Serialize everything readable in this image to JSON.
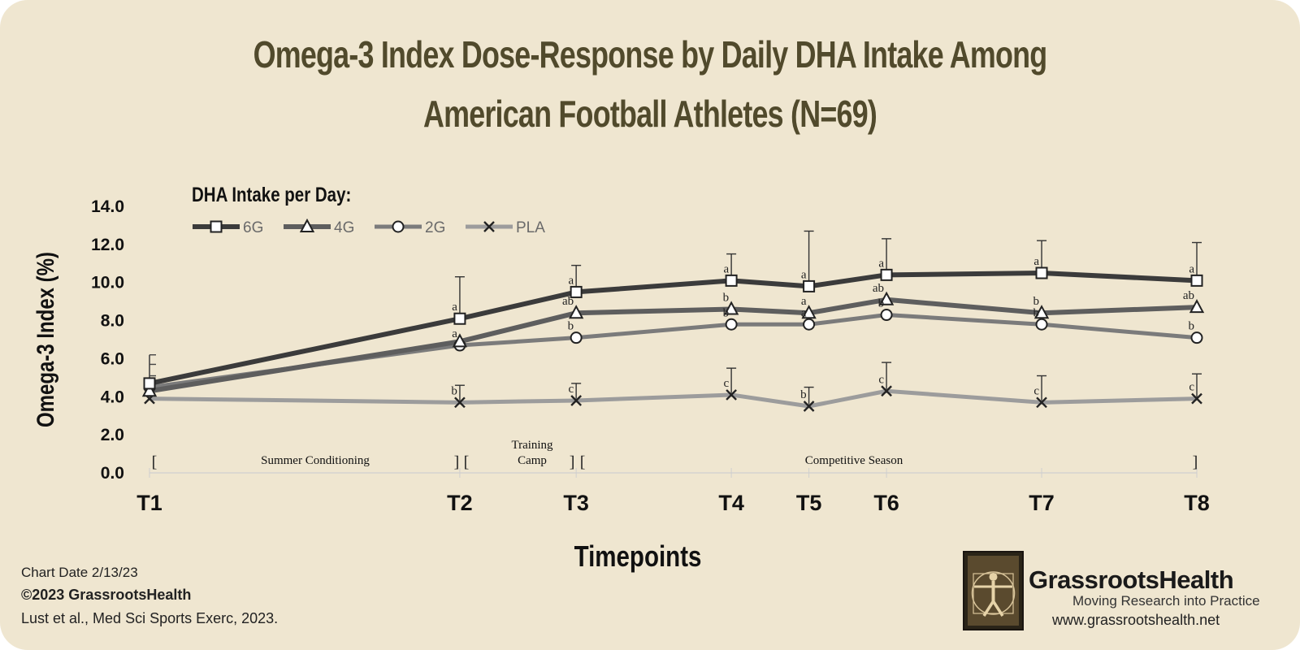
{
  "header": {
    "title_line1": "Omega-3 Index Dose-Response by Daily DHA Intake Among",
    "title_line2": "American Football Athletes (N=69)"
  },
  "chart_data": {
    "type": "line",
    "title": "Omega-3 Index Dose-Response by Daily DHA Intake Among American Football Athletes (N=69)",
    "xlabel": "Timepoints",
    "ylabel": "Omega-3 Index (%)",
    "ylim": [
      0,
      14
    ],
    "yticks": [
      "0.0",
      "2.0",
      "4.0",
      "6.0",
      "8.0",
      "10.0",
      "12.0",
      "14.0"
    ],
    "categories": [
      "T1",
      "T2",
      "T3",
      "T4",
      "T5",
      "T6",
      "T7",
      "T8"
    ],
    "x_positions": [
      0,
      4,
      5.5,
      7.5,
      8.5,
      9.5,
      11.5,
      13.5
    ],
    "legend_title": "DHA Intake per Day:",
    "legend_placement": "top-left",
    "grid": false,
    "series": [
      {
        "name": "6G",
        "marker": "square",
        "color": "#3b3b3b",
        "values": [
          4.7,
          8.1,
          9.5,
          10.1,
          9.8,
          10.4,
          10.5,
          10.1
        ],
        "error_upper": [
          null,
          10.3,
          10.9,
          11.5,
          12.7,
          12.3,
          12.2,
          12.1
        ],
        "labels": [
          "",
          "a",
          "a",
          "a",
          "a",
          "a",
          "a",
          "a"
        ]
      },
      {
        "name": "4G",
        "marker": "triangle",
        "color": "#5e5e5e",
        "values": [
          4.3,
          6.9,
          8.4,
          8.6,
          8.4,
          9.1,
          8.4,
          8.7
        ],
        "error_upper": [
          null,
          null,
          null,
          null,
          null,
          null,
          null,
          null
        ],
        "labels": [
          "",
          "",
          "ab",
          "b",
          "a",
          "ab",
          "b",
          "ab"
        ]
      },
      {
        "name": "2G",
        "marker": "circle",
        "color": "#7b7b7b",
        "values": [
          4.5,
          6.7,
          7.1,
          7.8,
          7.8,
          8.3,
          7.8,
          7.1
        ],
        "error_upper": [
          null,
          null,
          null,
          null,
          null,
          null,
          null,
          null
        ],
        "labels": [
          "",
          "a",
          "b",
          "b",
          "a",
          "b",
          "b",
          "b"
        ]
      },
      {
        "name": "PLA",
        "marker": "x",
        "color": "#9c9c9c",
        "values": [
          3.9,
          3.7,
          3.8,
          4.1,
          3.5,
          4.3,
          3.7,
          3.9
        ],
        "error_upper": [
          null,
          4.6,
          4.7,
          5.5,
          4.5,
          5.8,
          5.1,
          5.2
        ],
        "labels": [
          "",
          "b",
          "c",
          "c",
          "b",
          "c",
          "c",
          "c"
        ]
      }
    ],
    "t1_error_upper": 6.2,
    "phases": [
      {
        "label": "Summer Conditioning",
        "start": 0,
        "end": 4
      },
      {
        "label": "Training Camp",
        "start": 4,
        "end": 5.5
      },
      {
        "label": "Competitive Season",
        "start": 5.5,
        "end": 13.5
      }
    ]
  },
  "footer": {
    "chart_date": "Chart Date 2/13/23",
    "copyright": "©2023 GrassrootsHealth",
    "citation": "Lust et al., Med Sci Sports Exerc, 2023."
  },
  "logo": {
    "name": "GrassrootsHealth",
    "tagline": "Moving Research into Practice",
    "url": "www.grassrootshealth.net"
  }
}
